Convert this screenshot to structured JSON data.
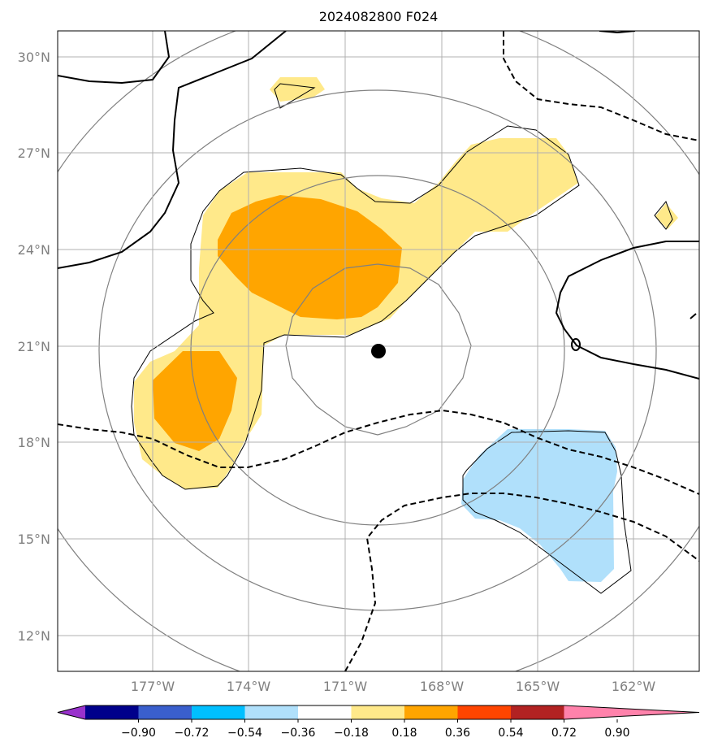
{
  "title": "2024082800 F024",
  "latitude_labels": [
    "30°N",
    "27°N",
    "24°N",
    "21°N",
    "18°N",
    "15°N",
    "12°N"
  ],
  "longitude_labels": [
    "177°W",
    "174°W",
    "171°W",
    "168°W",
    "165°W",
    "162°W"
  ],
  "colorbar": {
    "colors": [
      "#9932cc",
      "#00008b",
      "#3a5fcd",
      "#00bfff",
      "#b0e0fb",
      "#ffffff",
      "#ffe98a",
      "#ffa500",
      "#ff4500",
      "#b22222",
      "#ff82ab"
    ],
    "tick_labels": [
      "−0.90",
      "−0.72",
      "−0.54",
      "−0.36",
      "−0.18",
      "0.18",
      "0.36",
      "0.54",
      "0.72",
      "0.90"
    ]
  },
  "fill_colors": {
    "light_yellow": "#ffe98a",
    "orange": "#ffa500",
    "light_blue": "#b0e0fb"
  },
  "storm_center": {
    "lat": 20.8,
    "lon": -169.7
  },
  "grid": true
}
